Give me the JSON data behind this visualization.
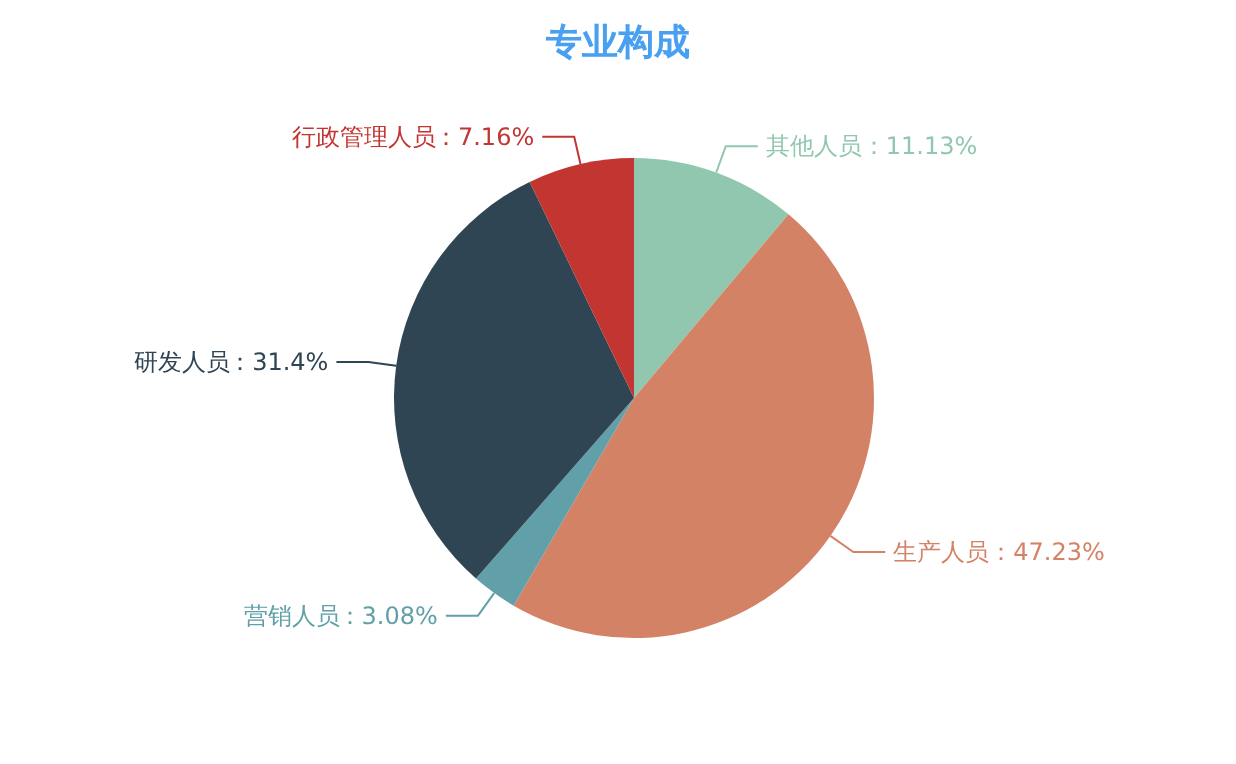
{
  "chart_data": {
    "type": "pie",
    "title": "专业构成",
    "categories": [
      "其他人员",
      "生产人员",
      "营销人员",
      "研发人员",
      "行政管理人员"
    ],
    "values": [
      11.13,
      47.23,
      3.08,
      31.4,
      7.16
    ],
    "colors": [
      "#91c7ae",
      "#d48265",
      "#61a0a8",
      "#2f4554",
      "#c23531"
    ],
    "value_labels": [
      "：11.13%",
      "：47.23%",
      "：3.08%",
      "：31.4%",
      "：7.16%"
    ],
    "legend": false
  }
}
